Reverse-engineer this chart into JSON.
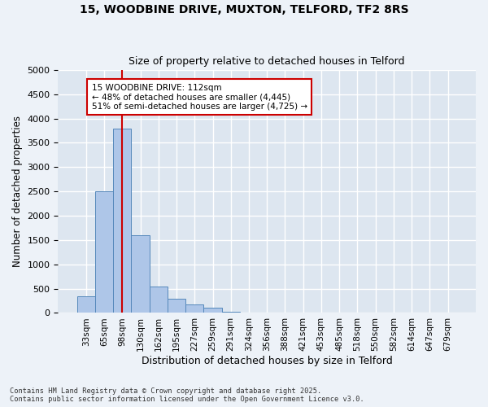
{
  "title_line1": "15, WOODBINE DRIVE, MUXTON, TELFORD, TF2 8RS",
  "title_line2": "Size of property relative to detached houses in Telford",
  "xlabel": "Distribution of detached houses by size in Telford",
  "ylabel": "Number of detached properties",
  "bar_values": [
    350,
    2500,
    3800,
    1600,
    550,
    300,
    175,
    100,
    30,
    0,
    0,
    0,
    0,
    0,
    0,
    0,
    0,
    0,
    0,
    0,
    0
  ],
  "bin_labels": [
    "33sqm",
    "65sqm",
    "98sqm",
    "130sqm",
    "162sqm",
    "195sqm",
    "227sqm",
    "259sqm",
    "291sqm",
    "324sqm",
    "356sqm",
    "388sqm",
    "421sqm",
    "453sqm",
    "485sqm",
    "518sqm",
    "550sqm",
    "582sqm",
    "614sqm",
    "647sqm",
    "679sqm"
  ],
  "bar_color": "#aec6e8",
  "bar_edge_color": "#5588bb",
  "vline_x": 2,
  "vline_color": "#cc0000",
  "annotation_text": "15 WOODBINE DRIVE: 112sqm\n← 48% of detached houses are smaller (4,445)\n51% of semi-detached houses are larger (4,725) →",
  "annotation_box_color": "#cc0000",
  "ylim": [
    0,
    5000
  ],
  "yticks": [
    0,
    500,
    1000,
    1500,
    2000,
    2500,
    3000,
    3500,
    4000,
    4500,
    5000
  ],
  "background_color": "#dde6f0",
  "grid_color": "#ffffff",
  "fig_bg_color": "#edf2f8",
  "footnote": "Contains HM Land Registry data © Crown copyright and database right 2025.\nContains public sector information licensed under the Open Government Licence v3.0."
}
